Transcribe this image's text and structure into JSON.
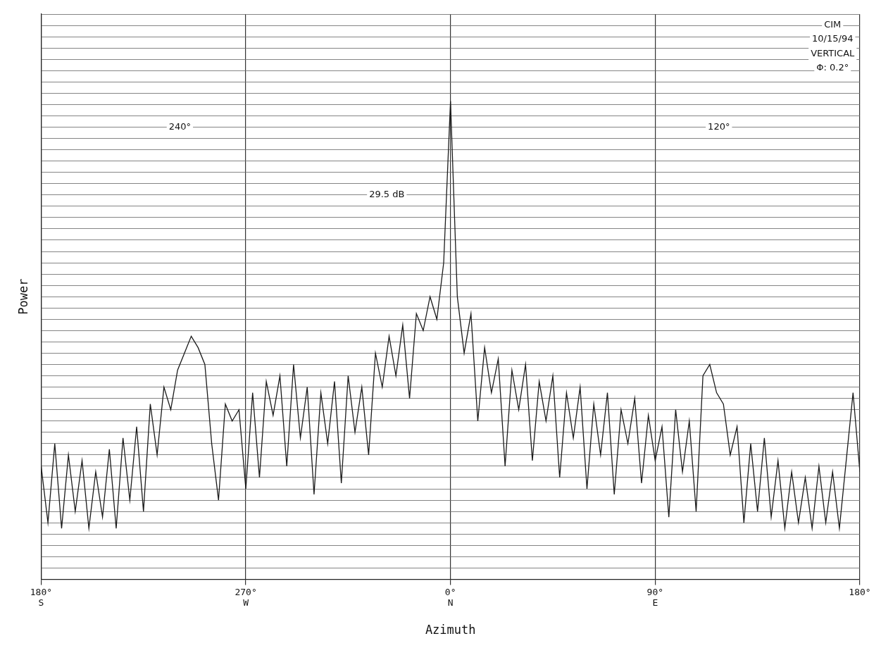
{
  "chart_data": {
    "type": "line",
    "x_label": "Azimuth",
    "y_label": "Power",
    "x": [
      -180,
      -177,
      -174,
      -171,
      -168,
      -165,
      -162,
      -159,
      -156,
      -153,
      -150,
      -147,
      -144,
      -141,
      -138,
      -135,
      -132,
      -129,
      -126,
      -123,
      -120,
      -117,
      -114,
      -111,
      -108,
      -105,
      -102,
      -99,
      -96,
      -93,
      -90,
      -87,
      -84,
      -81,
      -78,
      -75,
      -72,
      -69,
      -66,
      -63,
      -60,
      -57,
      -54,
      -51,
      -48,
      -45,
      -42,
      -39,
      -36,
      -33,
      -30,
      -27,
      -24,
      -21,
      -18,
      -15,
      -12,
      -9,
      -6,
      -3,
      0,
      3,
      6,
      9,
      12,
      15,
      18,
      21,
      24,
      27,
      30,
      33,
      36,
      39,
      42,
      45,
      48,
      51,
      54,
      57,
      60,
      63,
      66,
      69,
      72,
      75,
      78,
      81,
      84,
      87,
      90,
      93,
      96,
      99,
      102,
      105,
      108,
      111,
      114,
      117,
      120,
      123,
      126,
      129,
      132,
      135,
      138,
      141,
      144,
      147,
      150,
      153,
      156,
      159,
      162,
      165,
      168,
      171,
      174,
      177,
      180
    ],
    "values": [
      20,
      10,
      24,
      9,
      22,
      12,
      21,
      9,
      19,
      11,
      23,
      9,
      25,
      14,
      27,
      12,
      31,
      22,
      34,
      30,
      37,
      40,
      43,
      41,
      38,
      24,
      14,
      31,
      28,
      30,
      16,
      33,
      18,
      35,
      29,
      36,
      20,
      38,
      25,
      34,
      15,
      33,
      24,
      35,
      17,
      36,
      26,
      34,
      22,
      40,
      34,
      43,
      36,
      45,
      32,
      47,
      44,
      50,
      46,
      56,
      84.6,
      50,
      40,
      47,
      28,
      41,
      33,
      39,
      20,
      37,
      30,
      38,
      21,
      35,
      28,
      36,
      18,
      33,
      25,
      34,
      16,
      31,
      22,
      33,
      15,
      30,
      24,
      32,
      17,
      29,
      21,
      27,
      11,
      30,
      19,
      28,
      12,
      36,
      38,
      33,
      31,
      22,
      27,
      10,
      24,
      12,
      25,
      11,
      21,
      9,
      19,
      10,
      18,
      9,
      20,
      10,
      19,
      9,
      21,
      33,
      19
    ],
    "color": "#1a1a1a",
    "xlim": [
      -180,
      180
    ],
    "xticks": [
      {
        "value": -180,
        "label": "180° S"
      },
      {
        "value": -90,
        "label": "270° W"
      },
      {
        "value": 0,
        "label": "0° N"
      },
      {
        "value": 90,
        "label": "90° E"
      },
      {
        "value": 180,
        "label": "180°"
      }
    ],
    "ylim": [
      0,
      100
    ],
    "yticks": [
      0,
      2,
      4,
      6,
      8,
      10,
      12,
      14,
      16,
      18,
      20,
      22,
      24,
      26,
      28,
      30,
      32,
      34,
      36,
      38,
      40,
      42,
      44,
      46,
      48,
      50,
      52,
      54,
      56,
      58,
      60,
      62,
      64,
      66,
      68,
      70,
      72,
      74,
      76,
      78,
      80,
      82,
      84,
      86,
      88,
      90,
      92,
      94,
      96,
      98,
      100
    ],
    "grid": true,
    "tick_labels": "x",
    "annotations": [
      {
        "text": "29.5 dB",
        "x": -28,
        "y": 68
      },
      {
        "text": "240°",
        "x": -119,
        "y": 80
      },
      {
        "text": "120°",
        "x": 118,
        "y": 80
      },
      {
        "text": "CIM",
        "x": 168,
        "y": 98
      },
      {
        "text": "10/15/94",
        "x": 168,
        "y": 95.5
      },
      {
        "text": "VERTICAL",
        "x": 168,
        "y": 93
      },
      {
        "text": "Φ: 0.2°",
        "x": 168,
        "y": 90.5
      }
    ]
  }
}
